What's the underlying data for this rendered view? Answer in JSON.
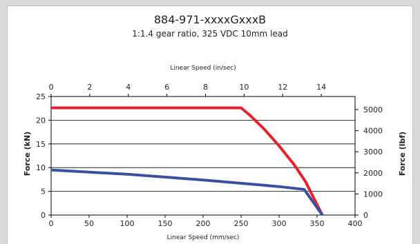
{
  "chart_data": {
    "type": "line",
    "title": "884-971-xxxxGxxxB",
    "subtitle": "1:1.4 gear ratio, 325 VDC 10mm lead",
    "xlabel": "Linear Speed (mm/sec)",
    "xlabel_top": "Linear Speed (in/sec)",
    "ylabel": "Force (kN)",
    "ylabel_right": "Force (lbf)",
    "xlim": [
      0,
      400
    ],
    "ylim": [
      0,
      25
    ],
    "xlim_top": [
      0,
      15.75
    ],
    "ylim_right": [
      0,
      5620
    ],
    "x_ticks": [
      "0",
      "50",
      "100",
      "150",
      "200",
      "250",
      "300",
      "350",
      "400"
    ],
    "x_ticks_top": [
      "0",
      "2",
      "4",
      "6",
      "8",
      "10",
      "12",
      "14"
    ],
    "y_ticks": [
      "0",
      "5",
      "10",
      "15",
      "20",
      "25"
    ],
    "y_ticks_right": [
      "0",
      "1000",
      "2000",
      "3000",
      "4000",
      "5000"
    ],
    "grid": "horizontal",
    "series": [
      {
        "color": "#e8202a",
        "x": [
          0,
          250,
          262,
          280,
          300,
          320,
          335,
          345,
          357
        ],
        "y": [
          22.6,
          22.6,
          21.0,
          18.2,
          14.6,
          10.6,
          7.0,
          3.8,
          0
        ]
      },
      {
        "color": "#3a4fa3",
        "x": [
          0,
          100,
          200,
          300,
          333,
          357
        ],
        "y": [
          9.5,
          8.6,
          7.4,
          6.0,
          5.4,
          0
        ]
      }
    ]
  }
}
